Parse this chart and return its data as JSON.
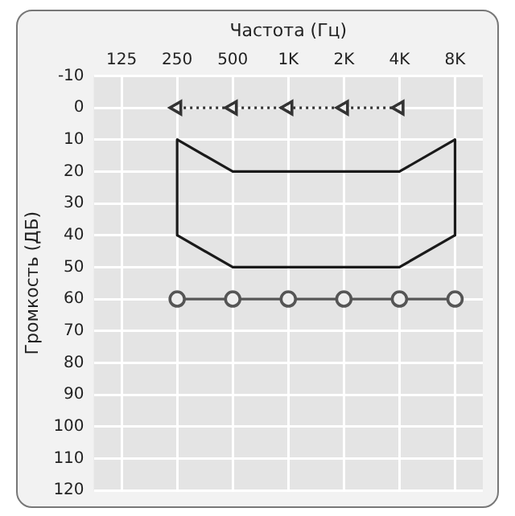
{
  "chart_data": {
    "type": "line",
    "xlabel": "Частота (Гц)",
    "ylabel": "Громкость (ДБ)",
    "categories": [
      "125",
      "250",
      "500",
      "1K",
      "2K",
      "4K",
      "8K"
    ],
    "ylim": [
      120,
      -10
    ],
    "yticks": [
      -10,
      0,
      10,
      20,
      30,
      40,
      50,
      60,
      70,
      80,
      90,
      100,
      110,
      120
    ],
    "grid": true,
    "legend": false,
    "series": [
      {
        "color": "#333333",
        "marker": "triangle",
        "line_style": "dotted",
        "x": [
          "250",
          "500",
          "1K",
          "2K",
          "4K"
        ],
        "values": [
          0,
          0,
          0,
          0,
          0
        ]
      },
      {
        "color": "#1a1a1a",
        "marker": "none",
        "line_style": "solid",
        "x": [
          "250",
          "500",
          "1K",
          "2K",
          "4K",
          "8K"
        ],
        "values": [
          10,
          20,
          20,
          20,
          20,
          10
        ]
      },
      {
        "color": "#1a1a1a",
        "marker": "none",
        "line_style": "solid",
        "x": [
          "250",
          "500",
          "1K",
          "2K",
          "4K",
          "8K"
        ],
        "values": [
          40,
          50,
          50,
          50,
          50,
          40
        ]
      },
      {
        "color": "#1a1a1a",
        "marker": "none",
        "line_style": "solid",
        "x": [
          "250",
          "250"
        ],
        "values": [
          10,
          40
        ]
      },
      {
        "color": "#1a1a1a",
        "marker": "none",
        "line_style": "solid",
        "x": [
          "8K",
          "8K"
        ],
        "values": [
          10,
          40
        ]
      },
      {
        "color": "#555555",
        "marker": "circle",
        "line_style": "solid",
        "x": [
          "250",
          "500",
          "1K",
          "2K",
          "4K",
          "8K"
        ],
        "values": [
          60,
          60,
          60,
          60,
          60,
          60
        ]
      }
    ]
  }
}
